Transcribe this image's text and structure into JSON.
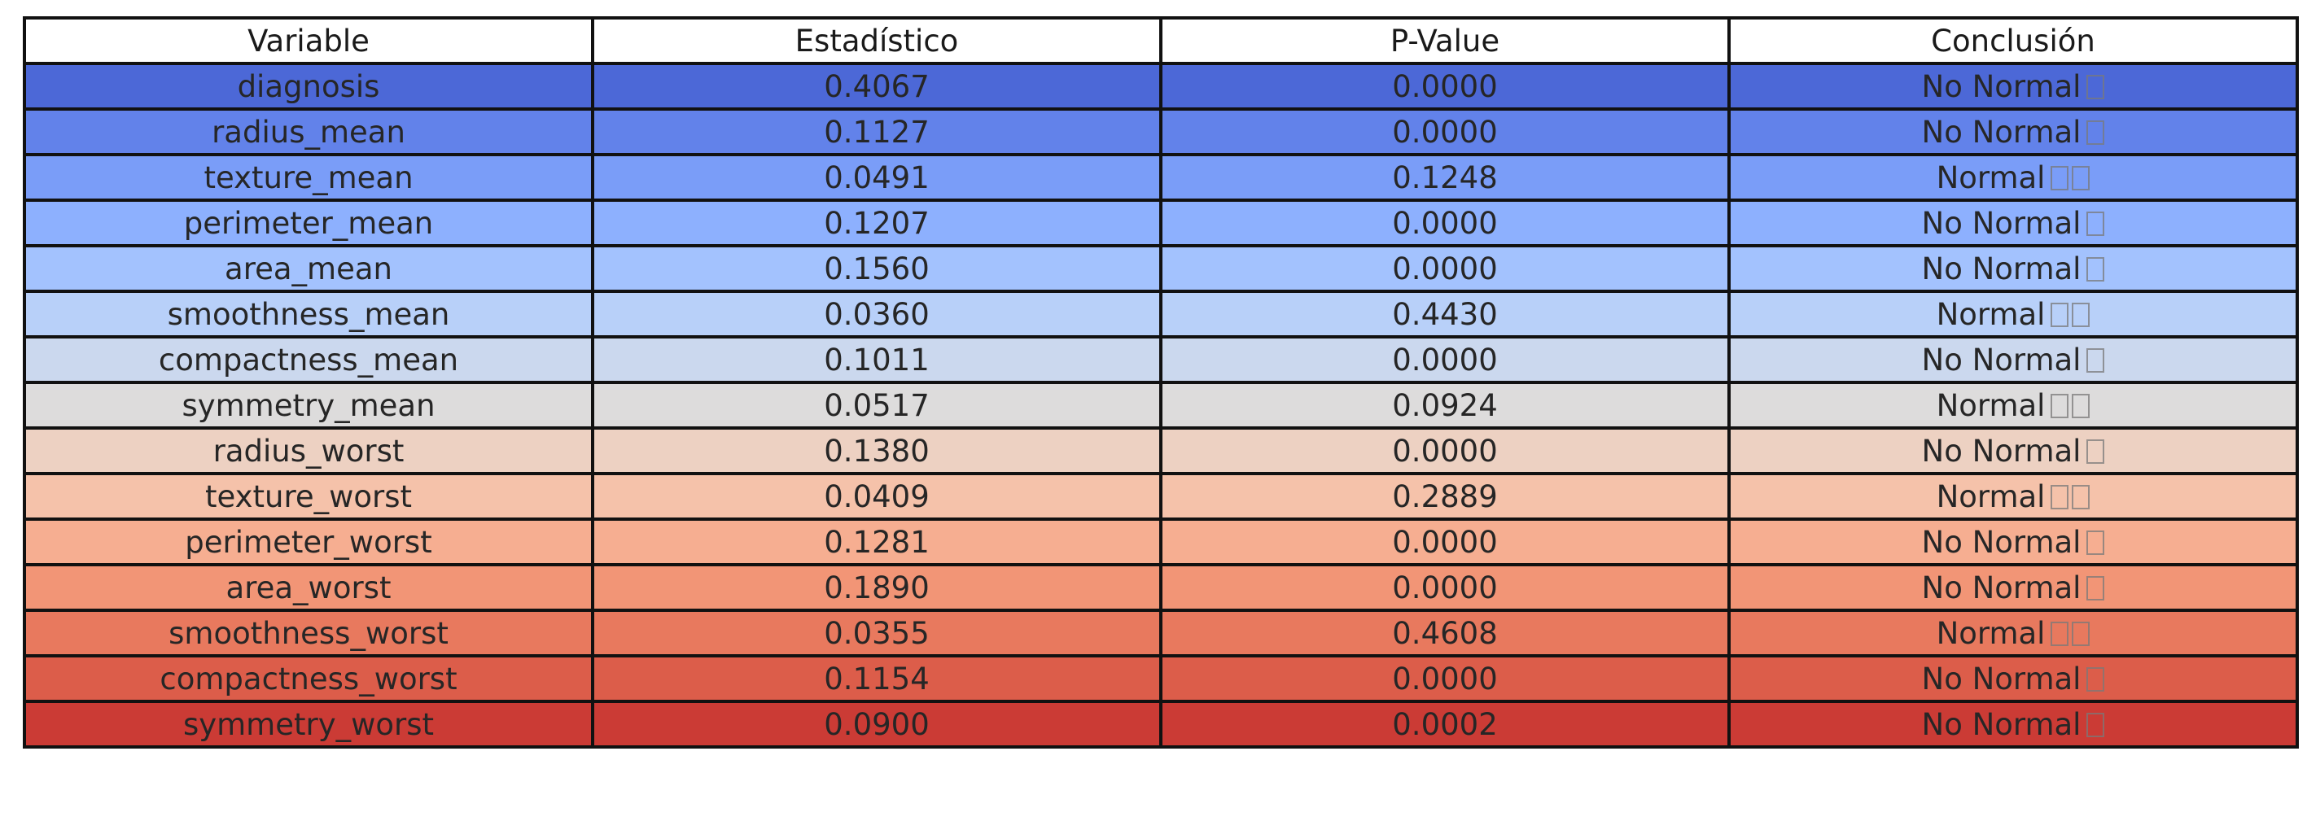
{
  "chart_data": {
    "type": "table",
    "columns": [
      "Variable",
      "Estadístico",
      "P-Value",
      "Conclusión"
    ],
    "rows": [
      {
        "variable": "diagnosis",
        "statistic": "0.4067",
        "p_value": "0.0000",
        "conclusion": "No Normal",
        "marks": 1,
        "color": "#4c68d7"
      },
      {
        "variable": "radius_mean",
        "statistic": "0.1127",
        "p_value": "0.0000",
        "conclusion": "No Normal",
        "marks": 1,
        "color": "#6282ea"
      },
      {
        "variable": "texture_mean",
        "statistic": "0.0491",
        "p_value": "0.1248",
        "conclusion": "Normal",
        "marks": 2,
        "color": "#7a9df8"
      },
      {
        "variable": "perimeter_mean",
        "statistic": "0.1207",
        "p_value": "0.0000",
        "conclusion": "No Normal",
        "marks": 1,
        "color": "#8db0fe"
      },
      {
        "variable": "area_mean",
        "statistic": "0.1560",
        "p_value": "0.0000",
        "conclusion": "No Normal",
        "marks": 1,
        "color": "#a3c2fe"
      },
      {
        "variable": "smoothness_mean",
        "statistic": "0.0360",
        "p_value": "0.4430",
        "conclusion": "Normal",
        "marks": 2,
        "color": "#b8d0f9"
      },
      {
        "variable": "compactness_mean",
        "statistic": "0.1011",
        "p_value": "0.0000",
        "conclusion": "No Normal",
        "marks": 1,
        "color": "#cbd8ee"
      },
      {
        "variable": "symmetry_mean",
        "statistic": "0.0517",
        "p_value": "0.0924",
        "conclusion": "Normal",
        "marks": 2,
        "color": "#dddcdc"
      },
      {
        "variable": "radius_worst",
        "statistic": "0.1380",
        "p_value": "0.0000",
        "conclusion": "No Normal",
        "marks": 1,
        "color": "#edd1c2"
      },
      {
        "variable": "texture_worst",
        "statistic": "0.0409",
        "p_value": "0.2889",
        "conclusion": "Normal",
        "marks": 2,
        "color": "#f5c2aa"
      },
      {
        "variable": "perimeter_worst",
        "statistic": "0.1281",
        "p_value": "0.0000",
        "conclusion": "No Normal",
        "marks": 1,
        "color": "#f6ae91"
      },
      {
        "variable": "area_worst",
        "statistic": "0.1890",
        "p_value": "0.0000",
        "conclusion": "No Normal",
        "marks": 1,
        "color": "#f29576"
      },
      {
        "variable": "smoothness_worst",
        "statistic": "0.0355",
        "p_value": "0.4608",
        "conclusion": "Normal",
        "marks": 2,
        "color": "#e8795e"
      },
      {
        "variable": "compactness_worst",
        "statistic": "0.1154",
        "p_value": "0.0000",
        "conclusion": "No Normal",
        "marks": 1,
        "color": "#dc5d4a"
      },
      {
        "variable": "symmetry_worst",
        "statistic": "0.0900",
        "p_value": "0.0002",
        "conclusion": "No Normal",
        "marks": 1,
        "color": "#cb3b35"
      }
    ]
  }
}
